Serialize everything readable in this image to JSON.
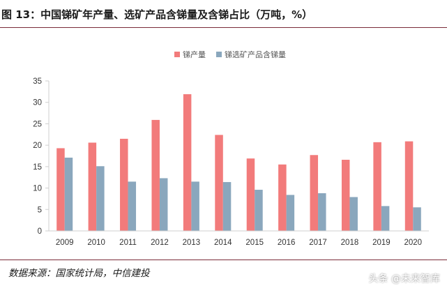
{
  "figure": {
    "title": "图 13：中国锑矿年产量、选矿产品含锑量及含锑占比（万吨，%）",
    "source": "数据来源：国家统计局，中信建投",
    "watermark": "头条 @未来智库"
  },
  "colors": {
    "series_1": "#f27b7b",
    "series_2": "#8aa7bd",
    "axis": "#cfcfcf",
    "title_rule": "#7a2b38"
  },
  "chart_data": {
    "type": "bar",
    "categories": [
      "2009",
      "2010",
      "2011",
      "2012",
      "2013",
      "2014",
      "2015",
      "2016",
      "2017",
      "2018",
      "2019",
      "2020"
    ],
    "series": [
      {
        "name": "锑产量",
        "values": [
          19.3,
          20.6,
          21.5,
          25.9,
          31.9,
          22.4,
          16.9,
          15.5,
          17.7,
          16.6,
          20.7,
          20.9
        ]
      },
      {
        "name": "锑选矿产品含锑量",
        "values": [
          17.1,
          15.1,
          11.5,
          12.3,
          11.5,
          11.4,
          9.6,
          8.4,
          8.8,
          7.9,
          5.8,
          5.5
        ]
      }
    ],
    "ylim": [
      0,
      35
    ],
    "yticks": [
      0,
      5,
      10,
      15,
      20,
      25,
      30,
      35
    ],
    "grid": false,
    "legend_position": "top-center"
  }
}
